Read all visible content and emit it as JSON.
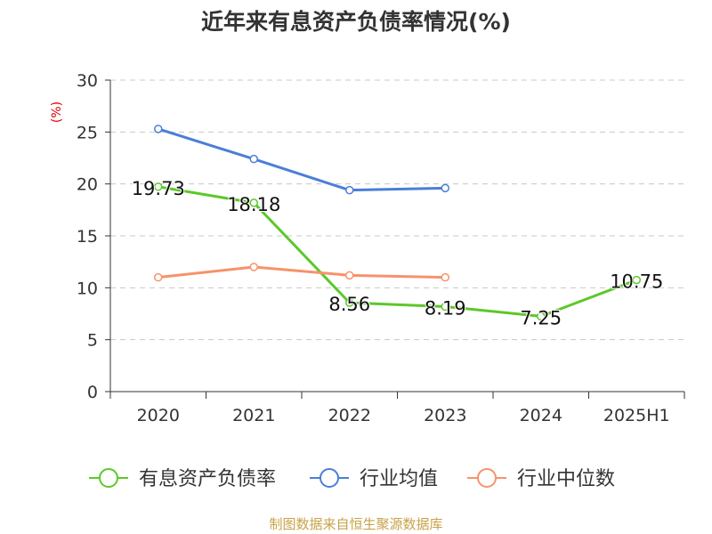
{
  "chart_data": {
    "type": "line",
    "title": "近年来有息资产负债率情况(%)",
    "y_unit_label": "(%)",
    "categories": [
      "2020",
      "2021",
      "2022",
      "2023",
      "2024",
      "2025H1"
    ],
    "y_ticks": [
      "0",
      "5",
      "10",
      "15",
      "20",
      "25",
      "30"
    ],
    "ylim": [
      0,
      30
    ],
    "grid": true,
    "legend_position": "bottom",
    "series": [
      {
        "name": "有息资产负债率",
        "color": "#5cc82a",
        "values": [
          19.73,
          18.18,
          8.56,
          8.19,
          7.25,
          10.75
        ],
        "labels": [
          "19.73",
          "18.18",
          "8.56",
          "8.19",
          "7.25",
          "10.75"
        ]
      },
      {
        "name": "行业均值",
        "color": "#4a7fd6",
        "values": [
          25.3,
          22.4,
          19.4,
          19.6,
          null,
          null
        ]
      },
      {
        "name": "行业中位数",
        "color": "#f7926a",
        "values": [
          11.0,
          12.0,
          11.2,
          11.0,
          null,
          null
        ]
      }
    ]
  },
  "source": "制图数据来自恒生聚源数据库"
}
